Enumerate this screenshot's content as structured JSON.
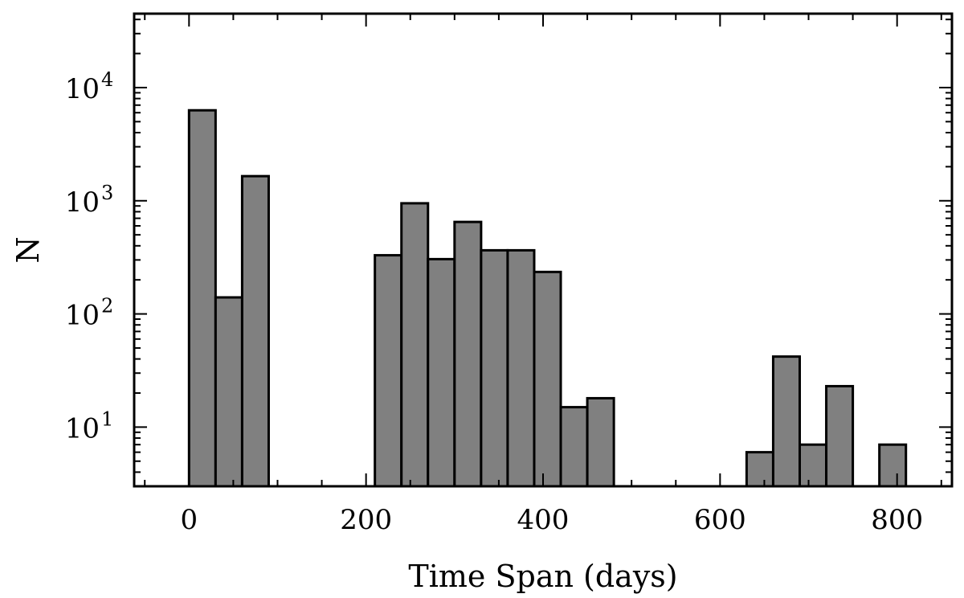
{
  "chart_data": {
    "type": "bar",
    "xlabel": "Time Span (days)",
    "ylabel": "N",
    "y_scale": "log",
    "xlim": [
      -62,
      862
    ],
    "ylim": [
      3,
      45000
    ],
    "x_ticks": [
      0,
      200,
      400,
      600,
      800
    ],
    "y_ticks": [
      {
        "value": 10,
        "base": "10",
        "exp": "1"
      },
      {
        "value": 100,
        "base": "10",
        "exp": "2"
      },
      {
        "value": 1000,
        "base": "10",
        "exp": "3"
      },
      {
        "value": 10000,
        "base": "10",
        "exp": "4"
      }
    ],
    "bin_width": 30,
    "bins": [
      {
        "x_start": 0,
        "value": 6300
      },
      {
        "x_start": 30,
        "value": 140
      },
      {
        "x_start": 60,
        "value": 1650
      },
      {
        "x_start": 210,
        "value": 330
      },
      {
        "x_start": 240,
        "value": 950
      },
      {
        "x_start": 270,
        "value": 305
      },
      {
        "x_start": 300,
        "value": 650
      },
      {
        "x_start": 330,
        "value": 365
      },
      {
        "x_start": 360,
        "value": 365
      },
      {
        "x_start": 390,
        "value": 235
      },
      {
        "x_start": 420,
        "value": 15
      },
      {
        "x_start": 450,
        "value": 18
      },
      {
        "x_start": 630,
        "value": 6
      },
      {
        "x_start": 660,
        "value": 42
      },
      {
        "x_start": 690,
        "value": 7
      },
      {
        "x_start": 720,
        "value": 23
      },
      {
        "x_start": 780,
        "value": 7
      }
    ],
    "bar_color": "#808080",
    "grid": false
  }
}
